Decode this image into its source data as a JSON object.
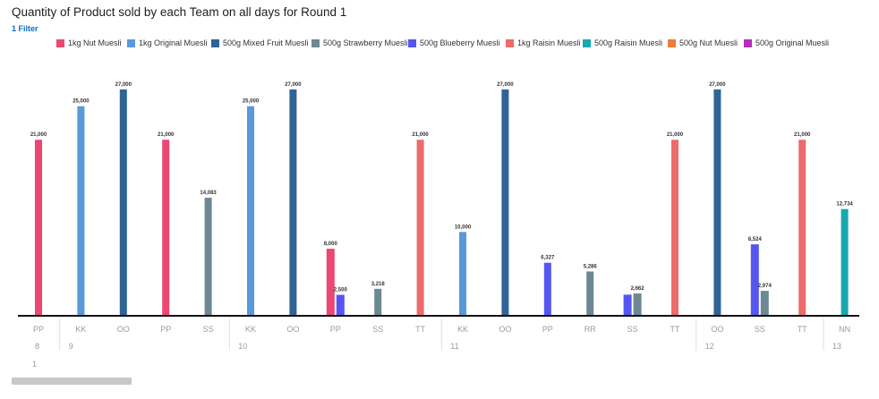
{
  "title": "Quantity of Product sold by each Team on all days for Round 1",
  "filter_label": "1 Filter",
  "chart_data": {
    "type": "bar",
    "title": "Quantity of Product sold by each Team on all days for Round 1",
    "xlabel": "",
    "ylabel": "",
    "ylim": [
      0,
      28000
    ],
    "grid": false,
    "legend_position": "top",
    "outer_group_label": "1",
    "legend": [
      {
        "name": "1kg Nut Muesli",
        "color": "#ec4673"
      },
      {
        "name": "1kg Original Muesli",
        "color": "#5899da"
      },
      {
        "name": "500g Mixed Fruit Muesli",
        "color": "#2f6497"
      },
      {
        "name": "500g Strawberry Muesli",
        "color": "#6c8893"
      },
      {
        "name": "500g Blueberry Muesli",
        "color": "#5556f2"
      },
      {
        "name": "1kg Raisin Muesli",
        "color": "#ed6b6b"
      },
      {
        "name": "500g Raisin Muesli",
        "color": "#19a7b1"
      },
      {
        "name": "500g Nut Muesli",
        "color": "#ed7d3a"
      },
      {
        "name": "500g Original Muesli",
        "color": "#b52fbc"
      }
    ],
    "groups": [
      {
        "day": "8",
        "teams": [
          {
            "team": "PP",
            "bars": [
              {
                "series": "1kg Nut Muesli",
                "value": 21000,
                "label": "21,000"
              }
            ]
          }
        ]
      },
      {
        "day": "9",
        "teams": [
          {
            "team": "KK",
            "bars": [
              {
                "series": "1kg Original Muesli",
                "value": 25000,
                "label": "25,000"
              }
            ]
          },
          {
            "team": "OO",
            "bars": [
              {
                "series": "500g Mixed Fruit Muesli",
                "value": 27000,
                "label": "27,000"
              }
            ]
          },
          {
            "team": "PP",
            "bars": [
              {
                "series": "1kg Nut Muesli",
                "value": 21000,
                "label": "21,000"
              }
            ]
          },
          {
            "team": "SS",
            "bars": [
              {
                "series": "500g Strawberry Muesli",
                "value": 14083,
                "label": "14,083"
              }
            ]
          }
        ]
      },
      {
        "day": "10",
        "teams": [
          {
            "team": "KK",
            "bars": [
              {
                "series": "1kg Original Muesli",
                "value": 25000,
                "label": "25,000"
              }
            ]
          },
          {
            "team": "OO",
            "bars": [
              {
                "series": "500g Mixed Fruit Muesli",
                "value": 27000,
                "label": "27,000"
              }
            ]
          },
          {
            "team": "PP",
            "bars": [
              {
                "series": "1kg Nut Muesli",
                "value": 8000,
                "label": "8,000"
              },
              {
                "series": "500g Blueberry Muesli",
                "value": 2500,
                "label": "2,500"
              }
            ]
          },
          {
            "team": "SS",
            "bars": [
              {
                "series": "500g Strawberry Muesli",
                "value": 3218,
                "label": "3,218"
              }
            ]
          },
          {
            "team": "TT",
            "bars": [
              {
                "series": "1kg Raisin Muesli",
                "value": 21000,
                "label": "21,000"
              }
            ]
          }
        ]
      },
      {
        "day": "11",
        "teams": [
          {
            "team": "KK",
            "bars": [
              {
                "series": "1kg Original Muesli",
                "value": 10000,
                "label": "10,000"
              }
            ]
          },
          {
            "team": "OO",
            "bars": [
              {
                "series": "500g Mixed Fruit Muesli",
                "value": 27000,
                "label": "27,000"
              }
            ]
          },
          {
            "team": "PP",
            "bars": [
              {
                "series": "500g Blueberry Muesli",
                "value": 6327,
                "label": "6,327"
              }
            ]
          },
          {
            "team": "RR",
            "bars": [
              {
                "series": "500g Strawberry Muesli",
                "value": 5286,
                "label": "5,286"
              }
            ]
          },
          {
            "team": "SS",
            "bars": [
              {
                "series": "500g Blueberry Muesli",
                "value": 2520,
                "label": ""
              },
              {
                "series": "500g Strawberry Muesli",
                "value": 2662,
                "label": "2,662"
              }
            ]
          },
          {
            "team": "TT",
            "bars": [
              {
                "series": "1kg Raisin Muesli",
                "value": 21000,
                "label": "21,000"
              }
            ]
          }
        ]
      },
      {
        "day": "12",
        "teams": [
          {
            "team": "OO",
            "bars": [
              {
                "series": "500g Mixed Fruit Muesli",
                "value": 27000,
                "label": "27,000"
              }
            ]
          },
          {
            "team": "SS",
            "bars": [
              {
                "series": "500g Blueberry Muesli",
                "value": 8524,
                "label": "8,524"
              },
              {
                "series": "500g Strawberry Muesli",
                "value": 2974,
                "label": "2,974"
              }
            ]
          },
          {
            "team": "TT",
            "bars": [
              {
                "series": "1kg Raisin Muesli",
                "value": 21000,
                "label": "21,000"
              }
            ]
          }
        ]
      },
      {
        "day": "13",
        "teams": [
          {
            "team": "NN",
            "bars": [
              {
                "series": "500g Raisin Muesli",
                "value": 12734,
                "label": "12,734"
              }
            ]
          }
        ]
      }
    ]
  }
}
